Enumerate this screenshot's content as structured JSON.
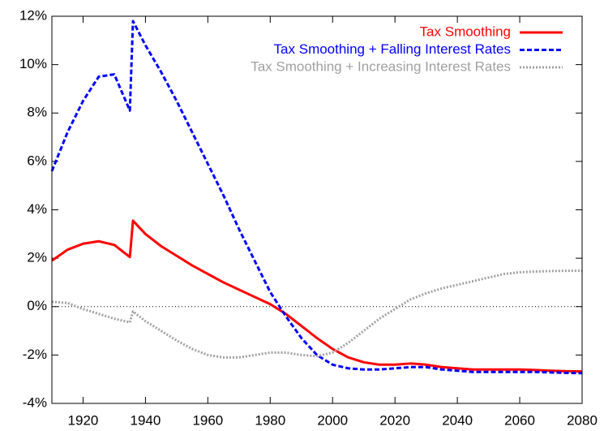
{
  "chart_data": {
    "type": "line",
    "x": [
      1910,
      1915,
      1920,
      1925,
      1930,
      1935,
      1936,
      1940,
      1945,
      1950,
      1955,
      1960,
      1965,
      1970,
      1975,
      1980,
      1985,
      1990,
      1995,
      2000,
      2005,
      2010,
      2015,
      2020,
      2025,
      2030,
      2035,
      2040,
      2045,
      2050,
      2055,
      2060,
      2065,
      2070,
      2075,
      2080
    ],
    "series": [
      {
        "name": "Tax Smoothing",
        "color": "#ff0000",
        "style": "solid",
        "values": [
          1.9,
          2.35,
          2.6,
          2.7,
          2.55,
          2.05,
          3.55,
          3.0,
          2.5,
          2.1,
          1.7,
          1.35,
          1.0,
          0.7,
          0.4,
          0.1,
          -0.3,
          -0.8,
          -1.3,
          -1.75,
          -2.1,
          -2.3,
          -2.4,
          -2.4,
          -2.35,
          -2.4,
          -2.5,
          -2.55,
          -2.6,
          -2.6,
          -2.6,
          -2.6,
          -2.62,
          -2.65,
          -2.67,
          -2.68
        ]
      },
      {
        "name": "Tax Smoothing + Falling Interest Rates",
        "color": "#0000ff",
        "style": "dashed",
        "values": [
          5.6,
          7.2,
          8.5,
          9.5,
          9.6,
          8.1,
          11.8,
          10.8,
          9.7,
          8.5,
          7.2,
          5.9,
          4.6,
          3.2,
          1.9,
          0.6,
          -0.4,
          -1.3,
          -2.0,
          -2.4,
          -2.55,
          -2.6,
          -2.6,
          -2.55,
          -2.5,
          -2.5,
          -2.6,
          -2.65,
          -2.7,
          -2.7,
          -2.7,
          -2.7,
          -2.7,
          -2.72,
          -2.74,
          -2.75
        ]
      },
      {
        "name": "Tax Smoothing + Increasing Interest Rates",
        "color": "#a0a0a0",
        "style": "dotted",
        "values": [
          0.2,
          0.15,
          -0.1,
          -0.3,
          -0.5,
          -0.65,
          -0.2,
          -0.6,
          -1.0,
          -1.4,
          -1.75,
          -2.0,
          -2.1,
          -2.1,
          -2.0,
          -1.9,
          -1.9,
          -2.0,
          -2.05,
          -1.9,
          -1.5,
          -1.0,
          -0.5,
          -0.1,
          0.3,
          0.55,
          0.75,
          0.9,
          1.05,
          1.2,
          1.35,
          1.42,
          1.45,
          1.47,
          1.48,
          1.48
        ]
      }
    ],
    "xlim": [
      1910,
      2080
    ],
    "xticks": [
      1920,
      1940,
      1960,
      1980,
      2000,
      2020,
      2040,
      2060,
      2080
    ],
    "ylim": [
      -4,
      12
    ],
    "yticks": [
      {
        "value": -4,
        "label": "-4%"
      },
      {
        "value": -2,
        "label": "-2%"
      },
      {
        "value": 0,
        "label": "0%"
      },
      {
        "value": 2,
        "label": "2%"
      },
      {
        "value": 4,
        "label": "4%"
      },
      {
        "value": 6,
        "label": "6%"
      },
      {
        "value": 8,
        "label": "8%"
      },
      {
        "value": 10,
        "label": "10%"
      },
      {
        "value": 12,
        "label": "12%"
      }
    ],
    "zero_line": true,
    "legend": "top-right"
  }
}
